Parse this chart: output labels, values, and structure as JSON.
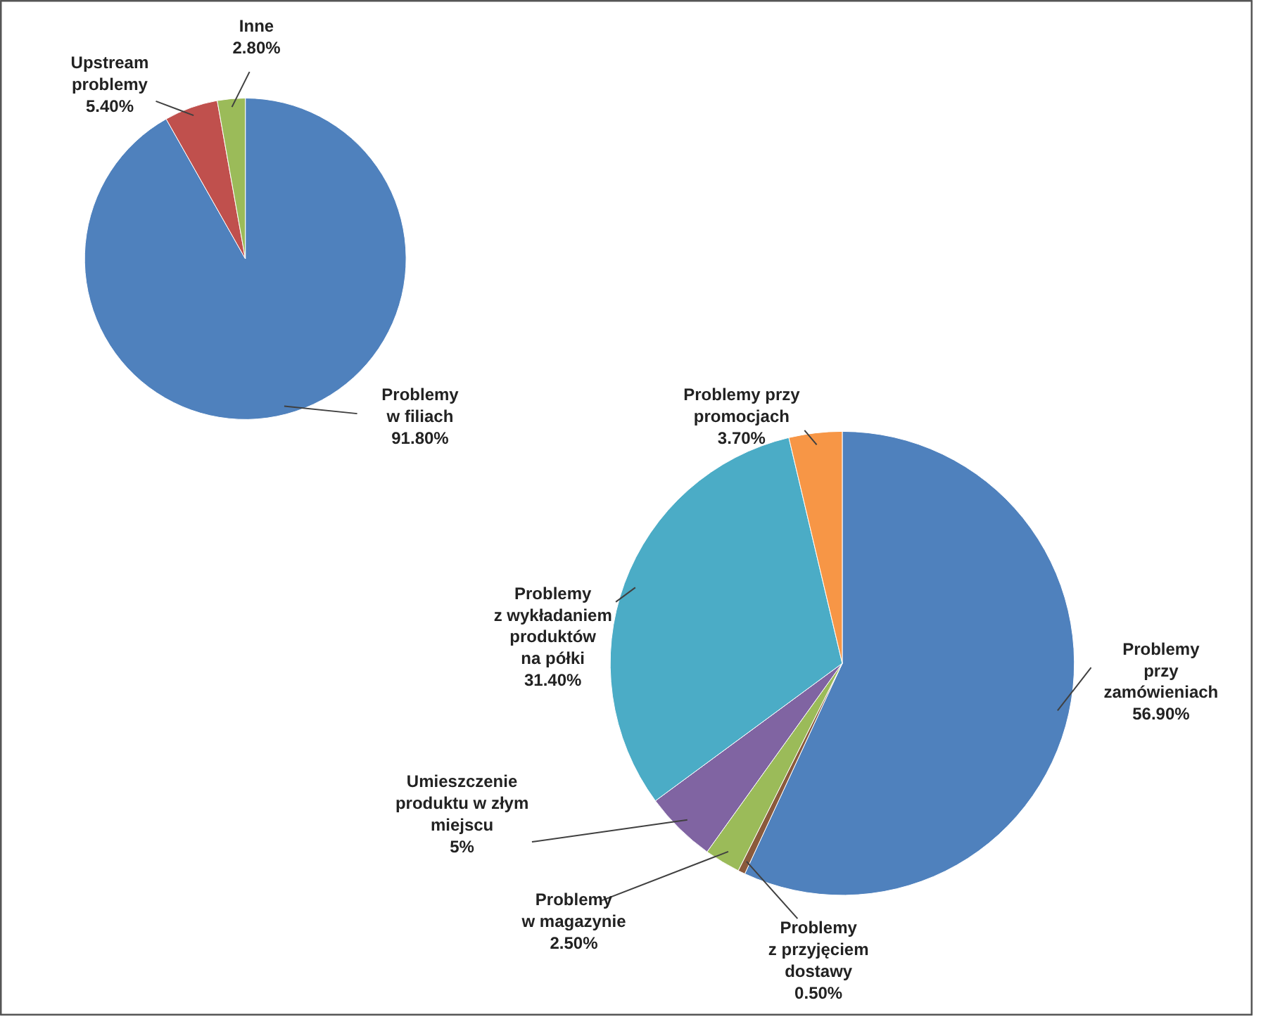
{
  "chart_data": [
    {
      "type": "pie",
      "categories": [
        "Problemy\nw filiach",
        "Upstream\nproblemy",
        "Inne"
      ],
      "values": [
        91.8,
        5.4,
        2.8
      ],
      "value_labels": [
        "91.80%",
        "5.40%",
        "2.80%"
      ],
      "colors": [
        "#4f81bd",
        "#c0504d",
        "#9bbb59"
      ]
    },
    {
      "type": "pie",
      "categories": [
        "Problemy\nprzy\nzamówieniach",
        "Problemy\nz przyjęciem\ndostawy",
        "Problemy\nw magazynie",
        "Umieszczenie\nproduktu w złym\nmiejscu",
        "Problemy\nz wykładaniem\nproduktów\nna półki",
        "Problemy przy\npromocjach"
      ],
      "values": [
        56.9,
        0.5,
        2.5,
        5,
        31.4,
        3.7
      ],
      "value_labels": [
        "56.90%",
        "0.50%",
        "2.50%",
        "5%",
        "31.40%",
        "3.70%"
      ],
      "colors": [
        "#4f81bd",
        "#8b5a3c",
        "#9bbb59",
        "#8064a2",
        "#4bacc6",
        "#f79646"
      ]
    }
  ]
}
